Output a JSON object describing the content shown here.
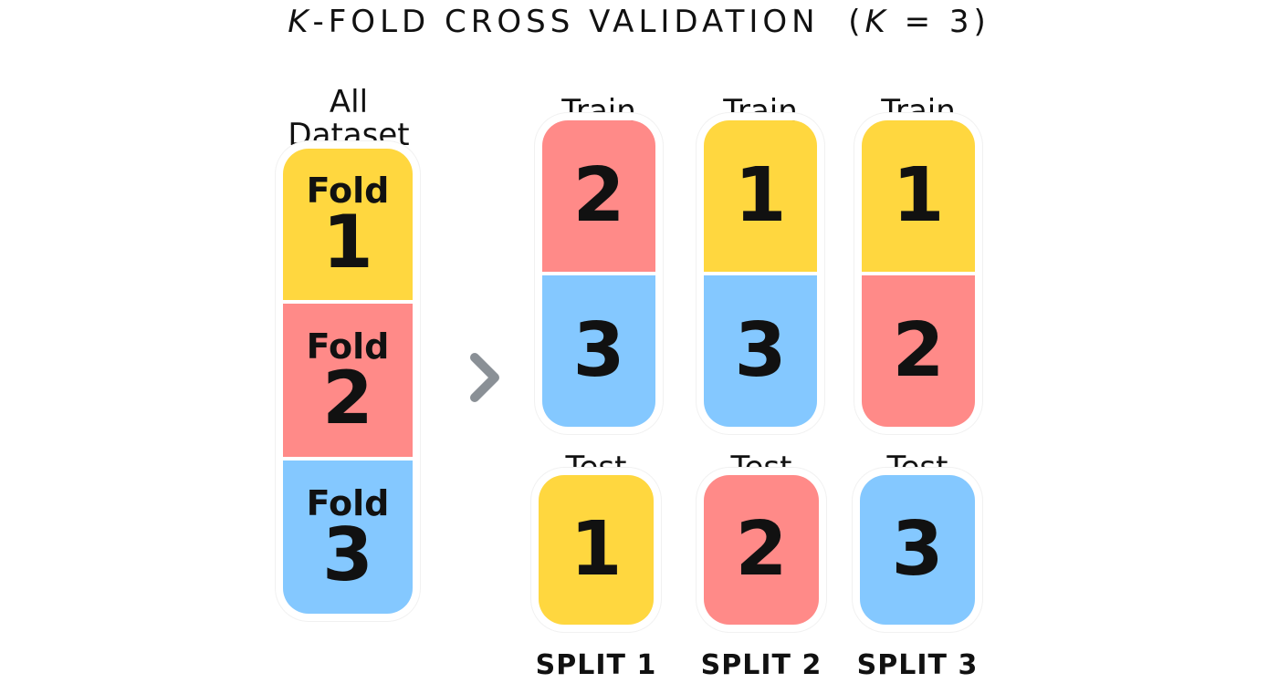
{
  "title": {
    "k": "K",
    "rest": "-FOLD CROSS VALIDATION",
    "paren_open": "(",
    "k2": "K",
    "paren_rest": " = 3)"
  },
  "colors": {
    "yellow": "#FFD73F",
    "red": "#FF8A88",
    "blue": "#84C8FF",
    "arrow": "#8A9096"
  },
  "all_dataset": {
    "label_line1": "All",
    "label_line2": "Dataset",
    "folds": [
      {
        "word": "Fold",
        "num": "1",
        "color": "yellow"
      },
      {
        "word": "Fold",
        "num": "2",
        "color": "red"
      },
      {
        "word": "Fold",
        "num": "3",
        "color": "blue"
      }
    ]
  },
  "arrow_icon": "chevron-right-icon",
  "splits": [
    {
      "train_label": "Train",
      "train": [
        "2",
        "3"
      ],
      "test_label": "Test",
      "test": "1",
      "name": "SPLIT 1"
    },
    {
      "train_label": "Train",
      "train": [
        "1",
        "3"
      ],
      "test_label": "Test",
      "test": "2",
      "name": "SPLIT 2"
    },
    {
      "train_label": "Train",
      "train": [
        "1",
        "2"
      ],
      "test_label": "Test",
      "test": "3",
      "name": "SPLIT 3"
    }
  ]
}
